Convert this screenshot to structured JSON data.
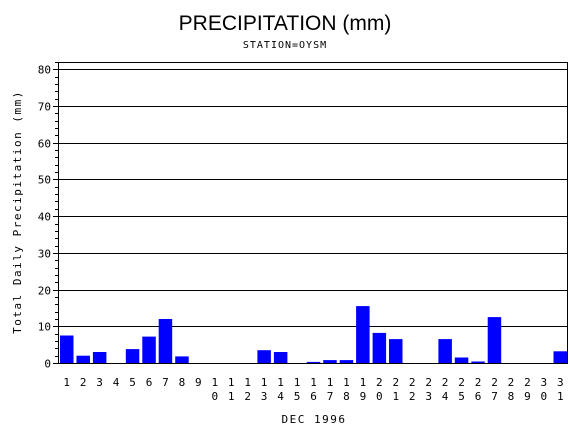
{
  "chart_data": {
    "type": "bar",
    "title": "PRECIPITATION (mm)",
    "subtitle": "STATION=OYSM",
    "xlabel": "DEC 1996",
    "ylabel": "Total Daily Precipitation (mm)",
    "ylim": [
      0,
      82
    ],
    "yticks": [
      0,
      10,
      20,
      30,
      40,
      50,
      60,
      70,
      80
    ],
    "ytick_labels": [
      "0",
      "10",
      "20",
      "30",
      "40",
      "50",
      "60",
      "70",
      "80"
    ],
    "grid": true,
    "bar_color": "#0000ff",
    "categories": [
      "1",
      "2",
      "3",
      "4",
      "5",
      "6",
      "7",
      "8",
      "9",
      "10",
      "11",
      "12",
      "13",
      "14",
      "15",
      "16",
      "17",
      "18",
      "19",
      "20",
      "21",
      "22",
      "23",
      "24",
      "25",
      "26",
      "27",
      "28",
      "29",
      "30",
      "31"
    ],
    "values": [
      7.5,
      2.0,
      3.0,
      0,
      3.8,
      7.2,
      12.0,
      1.8,
      0,
      0,
      0,
      0,
      3.5,
      3.0,
      0,
      0.3,
      0.8,
      0.8,
      15.5,
      8.2,
      6.5,
      0,
      0,
      6.5,
      1.5,
      0.4,
      12.5,
      0,
      0,
      0,
      3.2
    ]
  }
}
